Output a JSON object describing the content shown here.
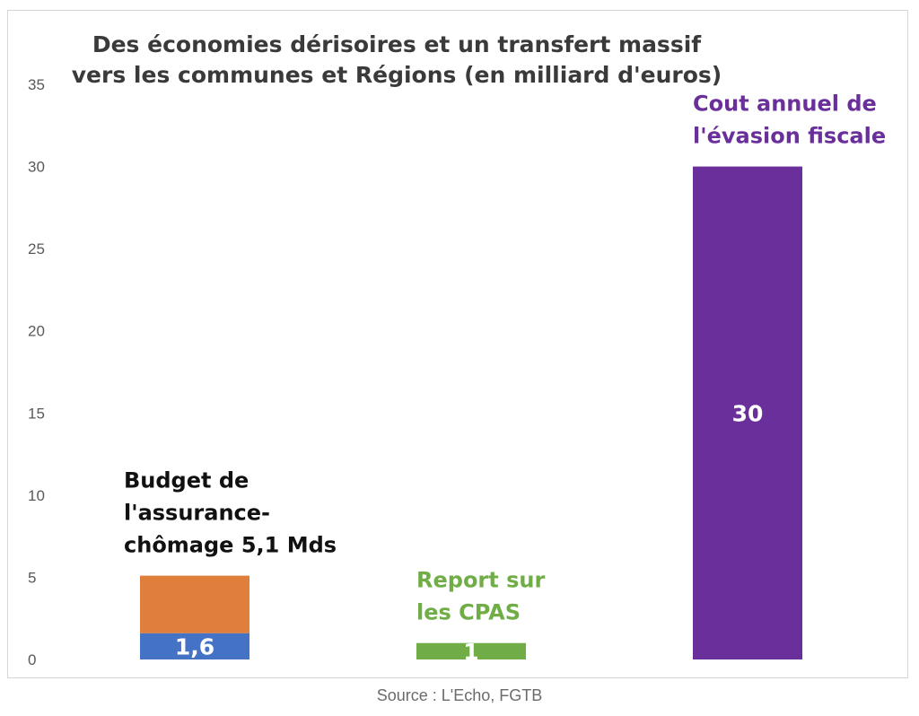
{
  "chart_data": {
    "type": "bar",
    "stacked": true,
    "title_lines": [
      "Des économies dérisoires et un transfert massif",
      "vers les communes et Régions (en milliard d'euros)"
    ],
    "xlabel": "",
    "ylabel": "",
    "ylim": [
      0,
      35
    ],
    "yticks": [
      "0",
      "5",
      "10",
      "15",
      "20",
      "25",
      "30",
      "35"
    ],
    "grid": false,
    "legend": "none",
    "categories": [
      "assurance-chomage",
      "cpas",
      "evasion-fiscale"
    ],
    "bars": [
      {
        "segments": [
          {
            "value": 1.6,
            "color": "#4472c4",
            "label": "1,6"
          },
          {
            "value": 3.5,
            "color": "#e07e3c",
            "label": ""
          }
        ],
        "annotation": [
          "Budget de",
          "l'assurance-",
          "chômage 5,1 Mds"
        ],
        "annotation_color": "#111111"
      },
      {
        "segments": [
          {
            "value": 1,
            "color": "#70ad47",
            "label": "1"
          }
        ],
        "annotation": [
          "Report sur",
          "les CPAS"
        ],
        "annotation_color": "#70ad47"
      },
      {
        "segments": [
          {
            "value": 30,
            "color": "#6a2f9b",
            "label": "30"
          }
        ],
        "annotation": [
          "Cout annuel de",
          "l'évasion fiscale"
        ],
        "annotation_color": "#6a2f9b"
      }
    ]
  },
  "source": "Source : L'Echo, FGTB"
}
